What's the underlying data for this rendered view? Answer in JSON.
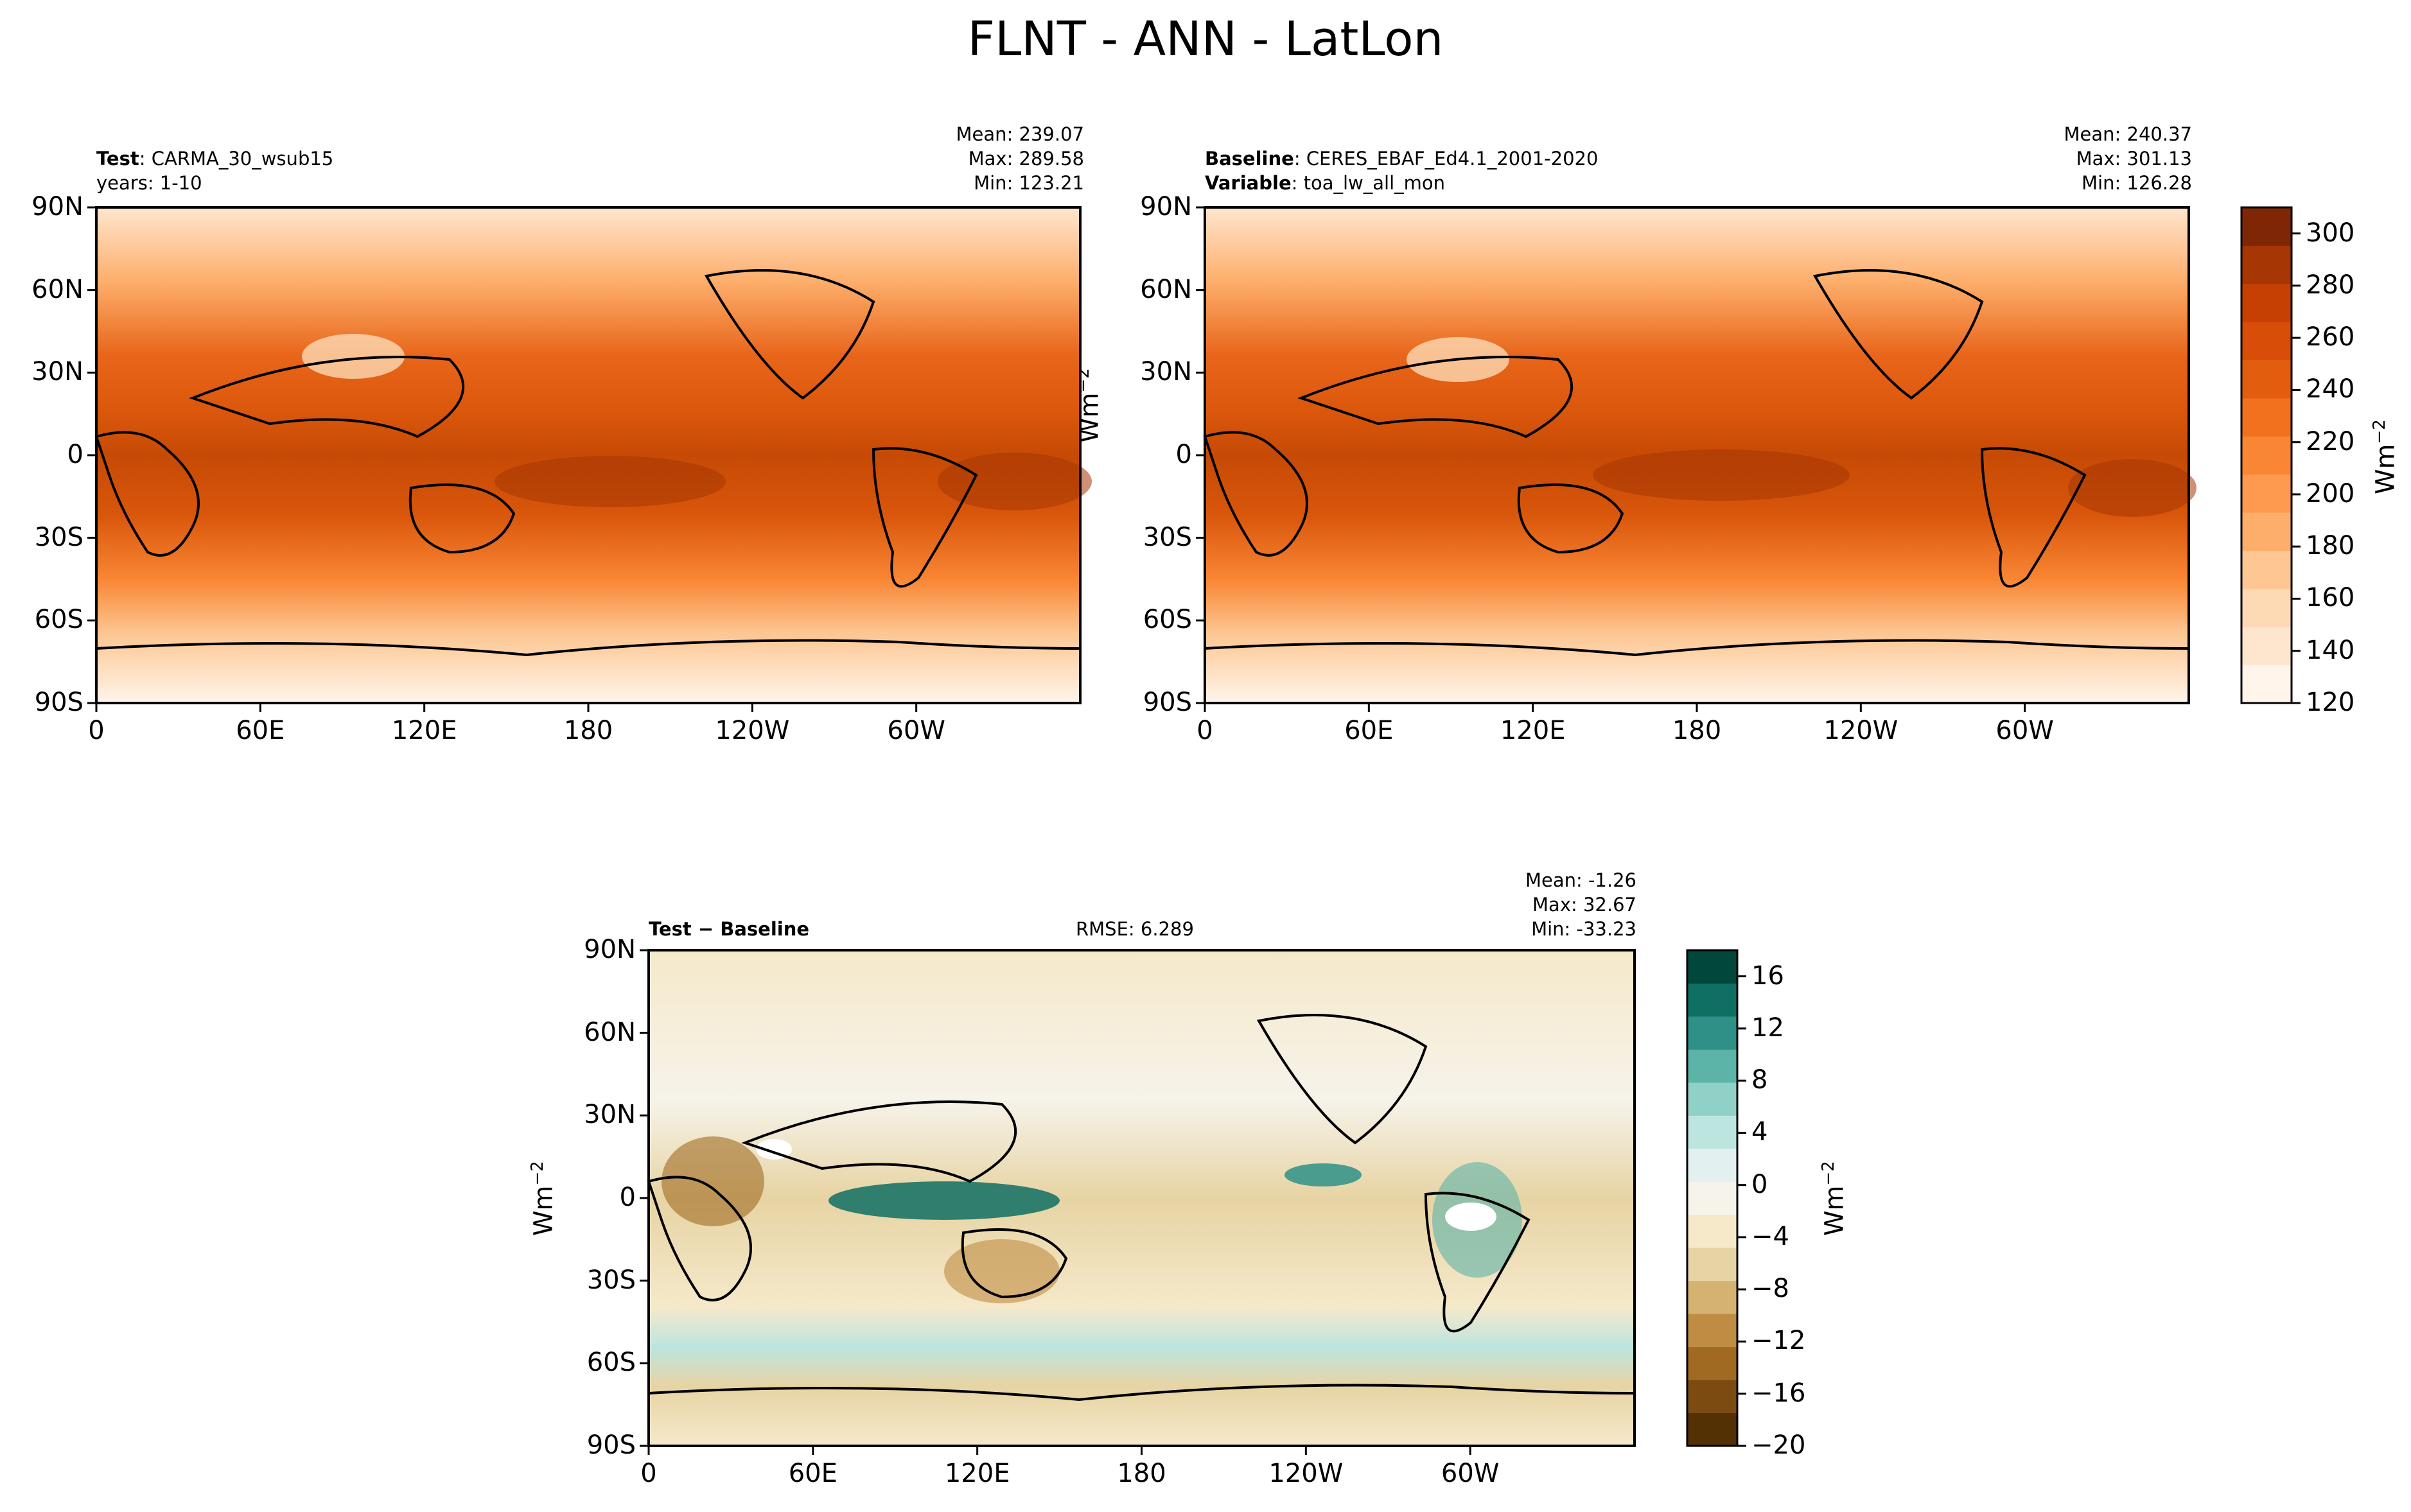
{
  "title": "FLNT - ANN - LatLon",
  "lon_ticks": [
    "0",
    "60E",
    "120E",
    "180",
    "120W",
    "60W"
  ],
  "lat_ticks": [
    "90N",
    "60N",
    "30N",
    "0",
    "30S",
    "60S",
    "90S"
  ],
  "unit": "Wm",
  "unit_exp": "−2",
  "test": {
    "label": "Test",
    "name": "CARMA_30_wsub15",
    "years": "years: 1-10",
    "mean": "Mean: 239.07",
    "max": "Max: 289.58",
    "min": "Min: 123.21"
  },
  "baseline": {
    "label": "Baseline",
    "name": "CERES_EBAF_Ed4.1_2001-2020",
    "var_label": "Variable",
    "var_name": "toa_lw_all_mon",
    "mean": "Mean: 240.37",
    "max": "Max: 301.13",
    "min": "Min: 126.28"
  },
  "diff": {
    "label": "Test − Baseline",
    "rmse": "RMSE: 6.289",
    "mean": "Mean: -1.26",
    "max": "Max: 32.67",
    "min": "Min: -33.23"
  },
  "colorbar_main": {
    "ticks": [
      "120",
      "140",
      "160",
      "180",
      "200",
      "220",
      "240",
      "260",
      "280",
      "300"
    ],
    "colors": [
      "#fff5eb",
      "#fee6ce",
      "#fdd9b4",
      "#fdc692",
      "#fdae6b",
      "#fd9a4f",
      "#f98634",
      "#f1711f",
      "#e35d0f",
      "#d84d08",
      "#c54002",
      "#a63603",
      "#7f2704"
    ]
  },
  "colorbar_diff": {
    "ticks": [
      "16",
      "12",
      "8",
      "4",
      "0",
      "−4",
      "−8",
      "−12",
      "−16",
      "−20"
    ],
    "colors": [
      "#543005",
      "#7b4b11",
      "#a06a22",
      "#bf8c43",
      "#d4b271",
      "#e7d4a4",
      "#f5e9ca",
      "#f6f3ea",
      "#e2f1ef",
      "#bde5df",
      "#8fd1c6",
      "#5cb3a8",
      "#2e9087",
      "#0f6f63",
      "#01473b"
    ]
  },
  "chart_data": [
    {
      "type": "heatmap",
      "title": "Test",
      "description_series": "CARMA_30_wsub15",
      "x_ticks": [
        "0",
        "60E",
        "120E",
        "180",
        "120W",
        "60W"
      ],
      "y_ticks": [
        "90N",
        "60N",
        "30N",
        "0",
        "30S",
        "60S",
        "90S"
      ],
      "xlim": [
        0,
        360
      ],
      "ylim": [
        -90,
        90
      ],
      "mean": 239.07,
      "max": 289.58,
      "min": 123.21
    },
    {
      "type": "heatmap",
      "title": "Baseline",
      "description_series": "CERES_EBAF_Ed4.1_2001-2020",
      "x_ticks": [
        "0",
        "60E",
        "120E",
        "180",
        "120W",
        "60W"
      ],
      "y_ticks": [
        "90N",
        "60N",
        "30N",
        "0",
        "30S",
        "60S",
        "90S"
      ],
      "xlim": [
        0,
        360
      ],
      "ylim": [
        -90,
        90
      ],
      "mean": 240.37,
      "max": 301.13,
      "min": 126.28,
      "colorbar_range": [
        120,
        310
      ]
    },
    {
      "type": "heatmap",
      "title": "Test − Baseline",
      "x_ticks": [
        "0",
        "60E",
        "120E",
        "180",
        "120W",
        "60W"
      ],
      "y_ticks": [
        "90N",
        "60N",
        "30N",
        "0",
        "30S",
        "60S",
        "90S"
      ],
      "xlim": [
        0,
        360
      ],
      "ylim": [
        -90,
        90
      ],
      "mean": -1.26,
      "max": 32.67,
      "min": -33.23,
      "rmse": 6.289,
      "colorbar_range": [
        -20,
        18
      ]
    }
  ]
}
